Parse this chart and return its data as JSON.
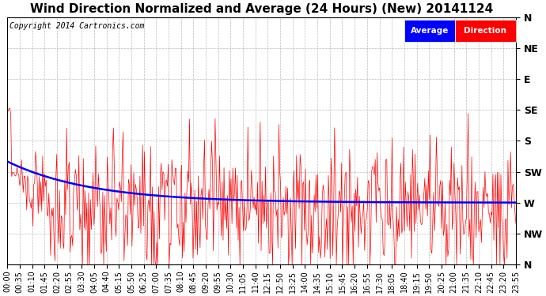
{
  "title": "Wind Direction Normalized and Average (24 Hours) (New) 20141124",
  "copyright": "Copyright 2014 Cartronics.com",
  "background_color": "#ffffff",
  "plot_bg_color": "#ffffff",
  "grid_color": "#aaaaaa",
  "ytick_labels": [
    "N",
    "NW",
    "W",
    "SW",
    "S",
    "SE",
    "E",
    "NE",
    "N"
  ],
  "ytick_values": [
    360,
    315,
    270,
    225,
    180,
    135,
    90,
    45,
    0
  ],
  "ymin": 0,
  "ymax": 360,
  "xlim_minutes": [
    0,
    1435
  ],
  "red_line_color": "#ff0000",
  "blue_line_color": "#0000ff",
  "legend_avg_bg": "#0000ff",
  "legend_dir_bg": "#ff0000",
  "legend_text_color": "#ffffff",
  "title_fontsize": 11,
  "copyright_fontsize": 7,
  "tick_fontsize": 7,
  "ytick_right_fontsize": 9,
  "num_points": 576,
  "xtick_step_minutes": 35
}
